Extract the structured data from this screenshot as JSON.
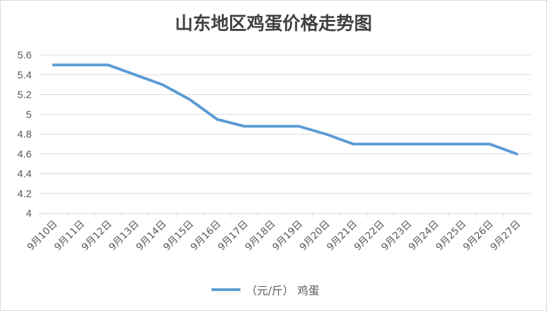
{
  "chart_data": {
    "type": "line",
    "title": "山东地区鸡蛋价格走势图",
    "categories": [
      "9月10日",
      "9月11日",
      "9月12日",
      "9月13日",
      "9月14日",
      "9月15日",
      "9月16日",
      "9月17日",
      "9月18日",
      "9月19日",
      "9月20日",
      "9月21日",
      "9月22日",
      "9月23日",
      "9月24日",
      "9月25日",
      "9月26日",
      "9月27日"
    ],
    "series": [
      {
        "name": "（元/斤） 鸡蛋",
        "values": [
          5.5,
          5.5,
          5.5,
          5.4,
          5.3,
          5.15,
          4.95,
          4.88,
          4.88,
          4.88,
          4.8,
          4.7,
          4.7,
          4.7,
          4.7,
          4.7,
          4.7,
          4.6
        ],
        "color": "#5b9bd5"
      }
    ],
    "ylim": [
      4,
      5.6
    ],
    "yticks": [
      "4",
      "4.2",
      "4.4",
      "4.6",
      "4.8",
      "5",
      "5.2",
      "5.4",
      "5.6"
    ],
    "grid": true,
    "legend": "bottom",
    "xlabel": "",
    "ylabel": ""
  }
}
